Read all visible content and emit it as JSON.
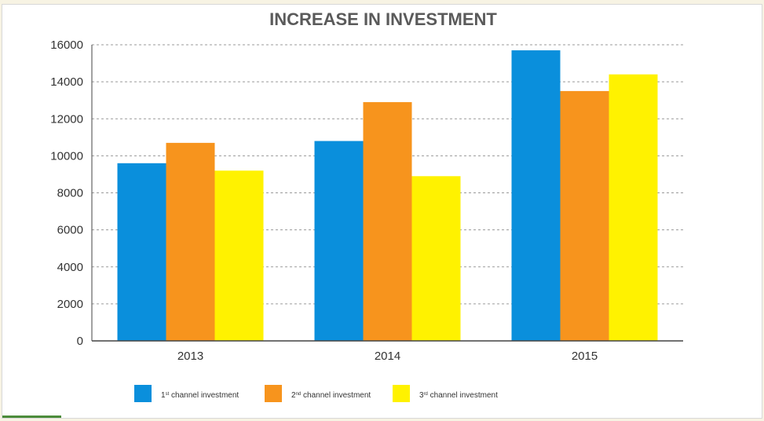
{
  "chart_data": {
    "type": "bar",
    "title": "INCREASE IN INVESTMENT",
    "categories": [
      "2013",
      "2014",
      "2015"
    ],
    "ylim": [
      0,
      16000
    ],
    "yticks": [
      0,
      2000,
      4000,
      6000,
      8000,
      10000,
      12000,
      14000,
      16000
    ],
    "grid": true,
    "legend_position": "bottom",
    "series": [
      {
        "name": "1st channel investment",
        "name_main": "1",
        "name_sup": "st",
        "name_rest": " channel investment",
        "color": "#0a8fdc",
        "values": [
          9600,
          10800,
          15700
        ]
      },
      {
        "name": "2nd channel investment",
        "name_main": "2",
        "name_sup": "nd",
        "name_rest": " channel investment",
        "color": "#f7941d",
        "values": [
          10700,
          12900,
          13500
        ]
      },
      {
        "name": "3rd channel investment",
        "name_main": "3",
        "name_sup": "rd",
        "name_rest": " channel investment",
        "color": "#fff200",
        "values": [
          9200,
          8900,
          14400
        ]
      }
    ]
  }
}
